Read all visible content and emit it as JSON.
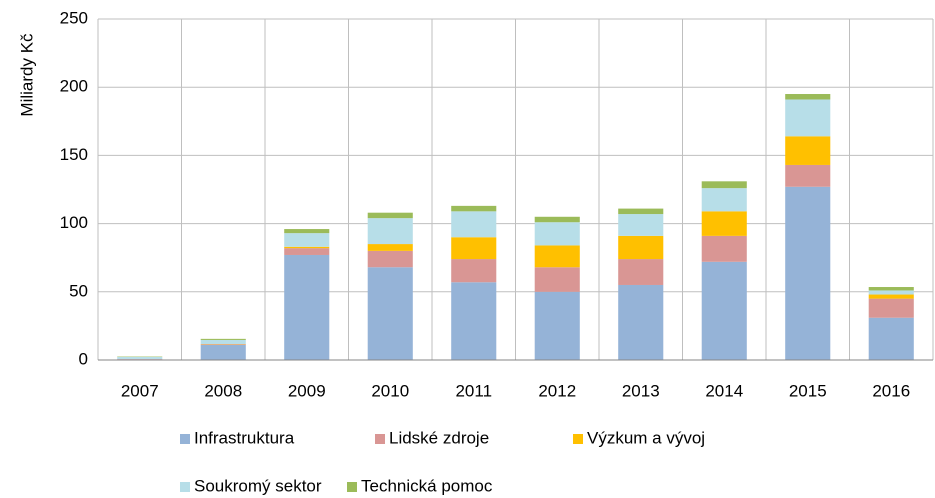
{
  "chart_data": {
    "type": "stacked_bar",
    "y_axis_label": "Miliardy Kč",
    "categories": [
      "2007",
      "2008",
      "2009",
      "2010",
      "2011",
      "2012",
      "2013",
      "2014",
      "2015",
      "2016"
    ],
    "series": [
      {
        "name": "Infrastruktura",
        "color": "#95b3d7",
        "values": [
          0.5,
          11,
          77,
          68,
          57,
          50,
          55,
          72,
          127,
          31
        ]
      },
      {
        "name": "Lidské zdroje",
        "color": "#d99694",
        "values": [
          0.2,
          0.5,
          5,
          12,
          17,
          18,
          19,
          19,
          16,
          14
        ]
      },
      {
        "name": "Výzkum a vývoj",
        "color": "#ffc000",
        "values": [
          0,
          0.2,
          1,
          5,
          16,
          16,
          17,
          18,
          21,
          3
        ]
      },
      {
        "name": "Soukromý sektor",
        "color": "#b7dee8",
        "values": [
          1.5,
          3,
          10,
          19,
          19,
          17,
          16,
          17,
          27,
          3
        ]
      },
      {
        "name": "Technická pomoc",
        "color": "#9bbb59",
        "values": [
          0.3,
          0.8,
          3,
          4,
          4,
          4,
          4,
          5,
          4,
          2.5
        ]
      }
    ],
    "ylim": [
      0,
      250
    ],
    "yticks": [
      0,
      50,
      100,
      150,
      200,
      250
    ],
    "grid": true
  }
}
